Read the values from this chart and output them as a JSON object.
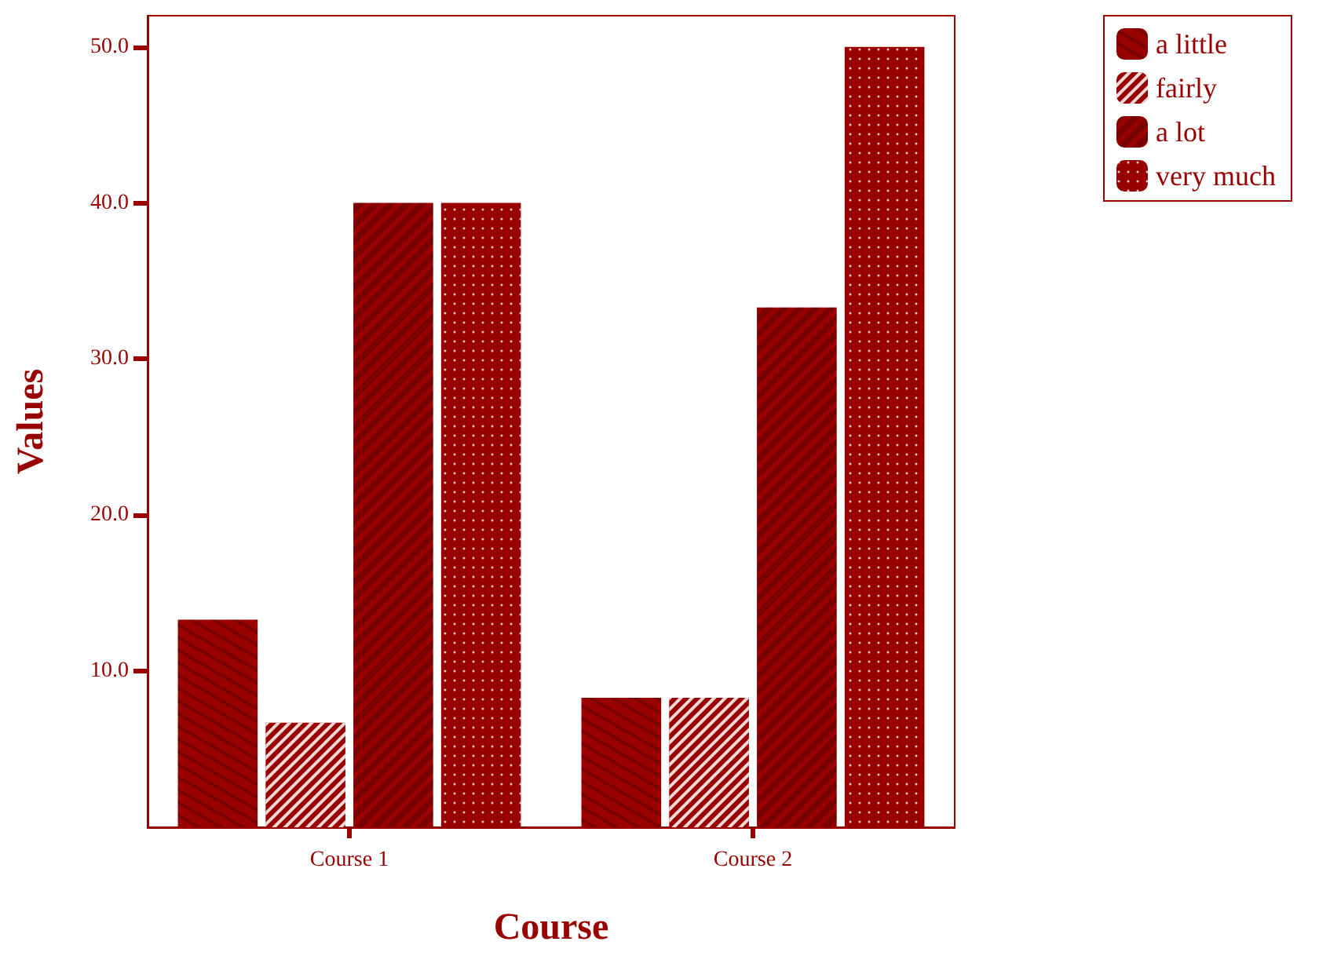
{
  "chart_data": {
    "type": "bar",
    "xlabel": "Course",
    "ylabel": "Values",
    "categories": [
      "Course 1",
      "Course 2"
    ],
    "series": [
      {
        "name": "a little",
        "color": "#990000",
        "values": [
          13.3,
          8.3
        ]
      },
      {
        "name": "fairly",
        "color": "#990000",
        "values": [
          6.7,
          8.3
        ]
      },
      {
        "name": "a lot",
        "color": "#990000",
        "values": [
          40,
          33.3
        ]
      },
      {
        "name": "very much",
        "color": "#990000",
        "values": [
          40,
          50
        ]
      }
    ],
    "ylim": [
      0,
      52
    ],
    "yticks": [
      {
        "value": 10,
        "label": "10.0"
      },
      {
        "value": 20,
        "label": "20.0"
      },
      {
        "value": 30,
        "label": "30.0"
      },
      {
        "value": 40,
        "label": "40.0"
      },
      {
        "value": 50,
        "label": "50.0"
      }
    ],
    "grid": false,
    "legend": "top right"
  }
}
